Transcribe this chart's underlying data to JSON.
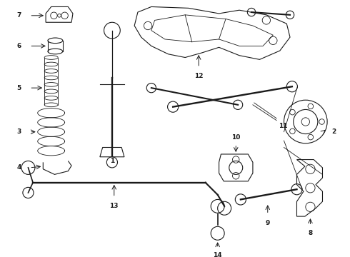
{
  "background_color": "#ffffff",
  "line_color": "#1a1a1a",
  "lw_thick": 1.2,
  "lw_med": 0.8,
  "lw_thin": 0.6,
  "fontsize": 6.5,
  "xlim": [
    0,
    490
  ],
  "ylim": [
    0,
    360
  ]
}
